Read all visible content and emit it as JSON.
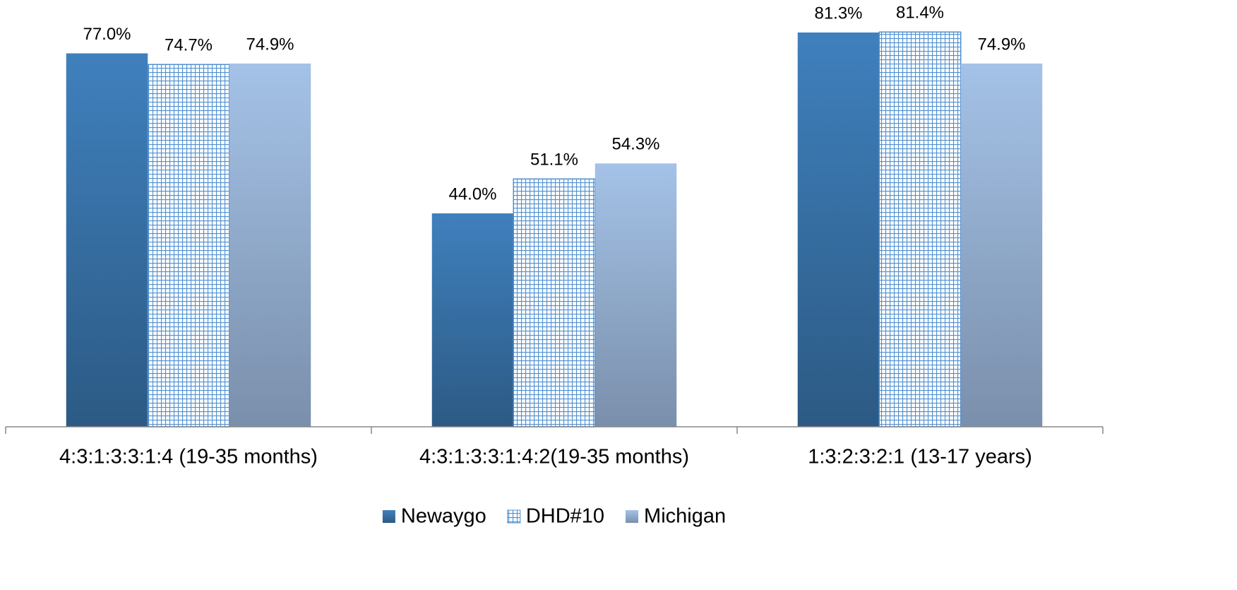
{
  "chart_data": {
    "type": "bar",
    "categories": [
      "4:3:1:3:3:1:4 (19-35 months)",
      "4:3:1:3:3:1:4:2(19-35 months)",
      "1:3:2:3:2:1 (13-17 years)"
    ],
    "series": [
      {
        "name": "Newaygo",
        "color": "#3c7dbb",
        "values": [
          77.0,
          44.0,
          81.3
        ],
        "value_labels": [
          "77.0%",
          "44.0%",
          "81.3%"
        ]
      },
      {
        "name": "DHD#10",
        "color": "#4f8fcf",
        "pattern": "grid",
        "values": [
          74.7,
          51.1,
          81.4
        ],
        "value_labels": [
          "74.7%",
          "51.1%",
          "81.4%"
        ]
      },
      {
        "name": "Michigan",
        "color": "#a3c1e6",
        "values": [
          74.9,
          54.3,
          74.9
        ],
        "value_labels": [
          "74.9%",
          "54.3%",
          "74.9%"
        ]
      }
    ],
    "ylim": [
      0,
      88
    ],
    "legend": "bottom"
  }
}
